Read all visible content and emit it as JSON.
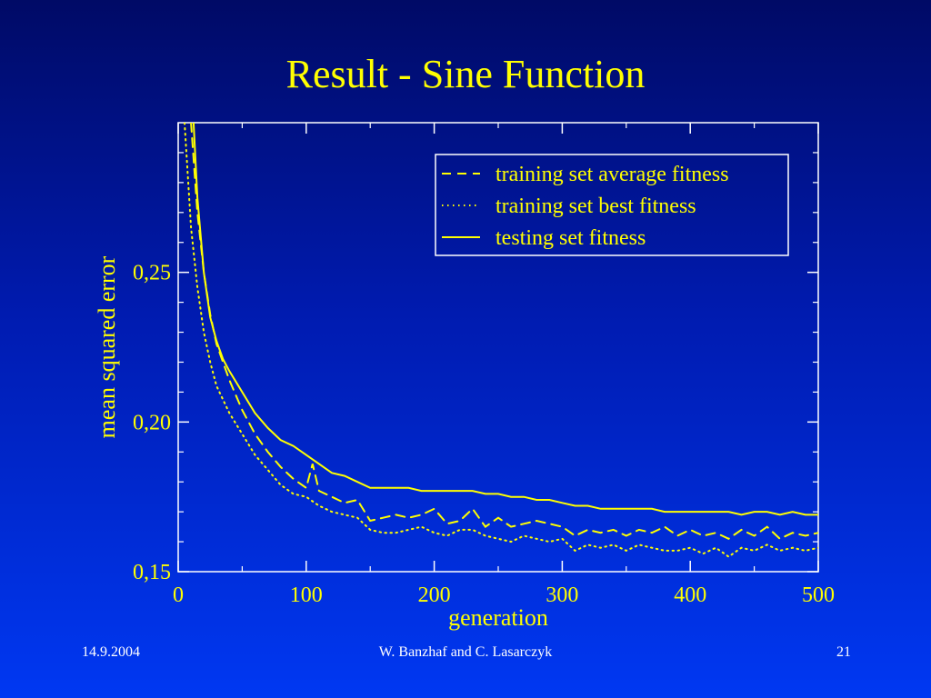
{
  "slide": {
    "title": "Result - Sine Function",
    "footer_date": "14.9.2004",
    "footer_authors": "W. Banzhaf and C. Lasarczyk",
    "page_number": "21"
  },
  "colors": {
    "accent": "#ffff00",
    "axes": "#ffffff",
    "text": "#ffffff"
  },
  "chart_data": {
    "type": "line",
    "title": "",
    "xlabel": "generation",
    "ylabel": "mean squared error",
    "xlim": [
      0,
      500
    ],
    "ylim": [
      0.15,
      0.3
    ],
    "x_ticks": [
      0,
      100,
      200,
      300,
      400,
      500
    ],
    "x_tick_labels": [
      "0",
      "100",
      "200",
      "300",
      "400",
      "500"
    ],
    "y_ticks": [
      0.15,
      0.2,
      0.25
    ],
    "y_tick_labels": [
      "0,15",
      "0,20",
      "0,25"
    ],
    "grid": false,
    "legend_position": "top-right",
    "series": [
      {
        "name": "training set average fitness",
        "style": "dashed",
        "color": "#ffff00",
        "x": [
          10,
          15,
          20,
          25,
          30,
          40,
          50,
          60,
          70,
          80,
          90,
          100,
          105,
          110,
          120,
          130,
          140,
          150,
          160,
          170,
          180,
          190,
          200,
          210,
          220,
          230,
          240,
          250,
          260,
          270,
          280,
          290,
          300,
          310,
          320,
          330,
          340,
          350,
          360,
          370,
          380,
          390,
          400,
          410,
          420,
          430,
          440,
          450,
          460,
          470,
          480,
          490,
          500
        ],
        "values": [
          0.3,
          0.27,
          0.25,
          0.236,
          0.226,
          0.214,
          0.204,
          0.196,
          0.19,
          0.185,
          0.181,
          0.178,
          0.186,
          0.177,
          0.175,
          0.173,
          0.174,
          0.167,
          0.168,
          0.169,
          0.168,
          0.169,
          0.171,
          0.166,
          0.167,
          0.171,
          0.165,
          0.168,
          0.165,
          0.166,
          0.167,
          0.166,
          0.165,
          0.162,
          0.164,
          0.163,
          0.164,
          0.162,
          0.164,
          0.163,
          0.165,
          0.162,
          0.164,
          0.162,
          0.163,
          0.161,
          0.164,
          0.162,
          0.165,
          0.161,
          0.163,
          0.162,
          0.163
        ]
      },
      {
        "name": "training set best fitness",
        "style": "dotted",
        "color": "#ffff00",
        "x": [
          5,
          10,
          15,
          20,
          25,
          30,
          40,
          50,
          60,
          70,
          80,
          90,
          100,
          110,
          120,
          130,
          140,
          150,
          160,
          170,
          180,
          190,
          200,
          210,
          220,
          230,
          240,
          250,
          260,
          270,
          280,
          290,
          300,
          310,
          320,
          330,
          340,
          350,
          360,
          370,
          380,
          390,
          400,
          410,
          420,
          430,
          440,
          450,
          460,
          470,
          480,
          490,
          500
        ],
        "values": [
          0.3,
          0.265,
          0.245,
          0.23,
          0.22,
          0.212,
          0.203,
          0.196,
          0.189,
          0.184,
          0.179,
          0.176,
          0.175,
          0.172,
          0.17,
          0.169,
          0.168,
          0.164,
          0.163,
          0.163,
          0.164,
          0.165,
          0.163,
          0.162,
          0.164,
          0.164,
          0.162,
          0.161,
          0.16,
          0.162,
          0.161,
          0.16,
          0.161,
          0.157,
          0.159,
          0.158,
          0.159,
          0.157,
          0.159,
          0.158,
          0.157,
          0.157,
          0.158,
          0.156,
          0.158,
          0.155,
          0.158,
          0.157,
          0.159,
          0.157,
          0.158,
          0.157,
          0.158
        ]
      },
      {
        "name": "testing set fitness",
        "style": "solid",
        "color": "#ffff00",
        "x": [
          12,
          15,
          20,
          25,
          30,
          35,
          40,
          50,
          60,
          70,
          80,
          90,
          100,
          110,
          120,
          130,
          140,
          150,
          160,
          170,
          180,
          190,
          200,
          210,
          220,
          230,
          240,
          250,
          260,
          270,
          280,
          290,
          300,
          310,
          320,
          330,
          340,
          350,
          360,
          370,
          380,
          390,
          400,
          410,
          420,
          430,
          440,
          450,
          460,
          470,
          480,
          490,
          500
        ],
        "values": [
          0.3,
          0.275,
          0.25,
          0.235,
          0.227,
          0.221,
          0.217,
          0.21,
          0.203,
          0.198,
          0.194,
          0.192,
          0.189,
          0.186,
          0.183,
          0.182,
          0.18,
          0.178,
          0.178,
          0.178,
          0.178,
          0.177,
          0.177,
          0.177,
          0.177,
          0.177,
          0.176,
          0.176,
          0.175,
          0.175,
          0.174,
          0.174,
          0.173,
          0.172,
          0.172,
          0.171,
          0.171,
          0.171,
          0.171,
          0.171,
          0.17,
          0.17,
          0.17,
          0.17,
          0.17,
          0.17,
          0.169,
          0.17,
          0.17,
          0.169,
          0.17,
          0.169,
          0.169
        ]
      }
    ]
  }
}
